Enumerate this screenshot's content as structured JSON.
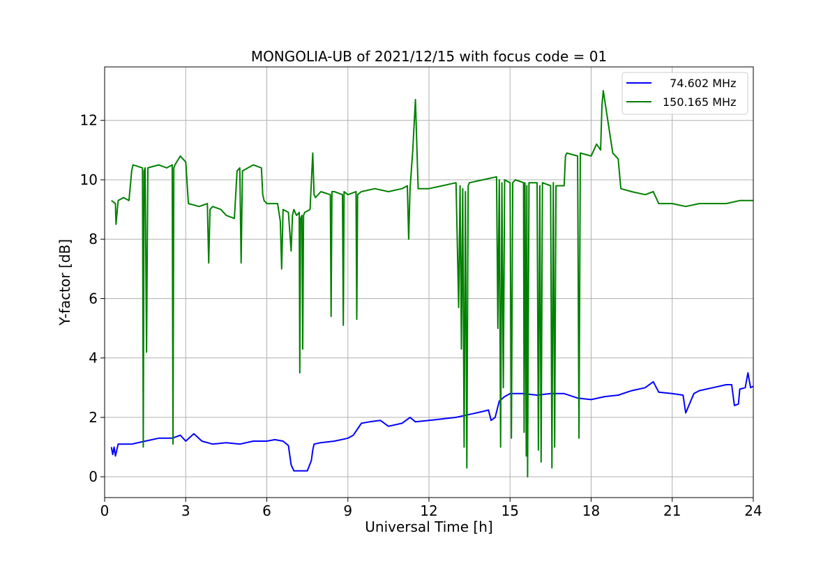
{
  "chart_data": {
    "type": "line",
    "title": "MONGOLIA-UB of 2021/12/15 with focus code = 01",
    "xlabel": "Universal Time [h]",
    "ylabel": "Y-factor [dB]",
    "xlim": [
      0,
      24
    ],
    "ylim": [
      -0.7,
      13.8
    ],
    "xticks": [
      0,
      3,
      6,
      9,
      12,
      15,
      18,
      21,
      24
    ],
    "yticks": [
      0,
      2,
      4,
      6,
      8,
      10,
      12
    ],
    "grid": true,
    "legend_position": "top-right",
    "series": [
      {
        "name": "  74.602 MHz",
        "color": "#0000ff",
        "x": [
          0.25,
          0.3,
          0.35,
          0.4,
          0.5,
          0.7,
          1.0,
          1.5,
          2.0,
          2.5,
          2.8,
          3.0,
          3.3,
          3.6,
          4.0,
          4.5,
          5.0,
          5.5,
          6.0,
          6.3,
          6.6,
          6.8,
          6.9,
          7.0,
          7.3,
          7.5,
          7.65,
          7.7,
          7.75,
          8.0,
          8.5,
          9.0,
          9.2,
          9.5,
          9.8,
          10.2,
          10.5,
          11.0,
          11.3,
          11.5,
          12.0,
          12.5,
          13.0,
          13.5,
          14.0,
          14.2,
          14.3,
          14.45,
          14.6,
          14.8,
          15.0,
          15.5,
          16.0,
          16.5,
          17.0,
          17.5,
          18.0,
          18.5,
          19.0,
          19.5,
          20.0,
          20.3,
          20.5,
          21.0,
          21.4,
          21.5,
          21.8,
          22.0,
          22.5,
          23.0,
          23.2,
          23.3,
          23.45,
          23.5,
          23.7,
          23.8,
          23.9,
          24.0
        ],
        "values": [
          1.0,
          0.75,
          1.0,
          0.7,
          1.1,
          1.1,
          1.1,
          1.2,
          1.3,
          1.3,
          1.4,
          1.2,
          1.45,
          1.2,
          1.1,
          1.15,
          1.1,
          1.2,
          1.2,
          1.25,
          1.2,
          1.05,
          0.4,
          0.2,
          0.2,
          0.2,
          0.55,
          0.9,
          1.1,
          1.15,
          1.2,
          1.3,
          1.4,
          1.8,
          1.85,
          1.9,
          1.7,
          1.8,
          2.0,
          1.85,
          1.9,
          1.95,
          2.0,
          2.1,
          2.2,
          2.25,
          1.9,
          2.0,
          2.55,
          2.7,
          2.8,
          2.8,
          2.75,
          2.8,
          2.8,
          2.65,
          2.6,
          2.7,
          2.75,
          2.9,
          3.0,
          3.2,
          2.85,
          2.8,
          2.75,
          2.15,
          2.8,
          2.9,
          3.0,
          3.1,
          3.1,
          2.4,
          2.45,
          2.95,
          3.0,
          3.5,
          3.0,
          3.05
        ]
      },
      {
        "name": "150.165 MHz",
        "color": "#008000",
        "x": [
          0.25,
          0.4,
          0.42,
          0.5,
          0.7,
          0.9,
          1.0,
          1.05,
          1.4,
          1.43,
          1.46,
          1.5,
          1.55,
          1.6,
          2.0,
          2.3,
          2.5,
          2.53,
          2.56,
          2.6,
          2.8,
          3.0,
          3.1,
          3.5,
          3.8,
          3.85,
          3.9,
          4.0,
          4.3,
          4.5,
          4.8,
          4.9,
          5.0,
          5.05,
          5.1,
          5.5,
          5.8,
          5.85,
          5.9,
          6.0,
          6.4,
          6.5,
          6.55,
          6.6,
          6.8,
          6.9,
          6.95,
          7.0,
          7.1,
          7.2,
          7.22,
          7.25,
          7.3,
          7.33,
          7.36,
          7.4,
          7.6,
          7.7,
          7.75,
          7.8,
          8.0,
          8.35,
          8.38,
          8.41,
          8.5,
          8.8,
          8.83,
          8.86,
          9.0,
          9.3,
          9.33,
          9.36,
          9.5,
          10.0,
          10.5,
          11.0,
          11.2,
          11.25,
          11.3,
          11.4,
          11.5,
          11.6,
          12.0,
          12.5,
          13.0,
          13.1,
          13.15,
          13.2,
          13.25,
          13.3,
          13.35,
          13.4,
          13.45,
          13.5,
          14.0,
          14.5,
          14.55,
          14.6,
          14.65,
          14.7,
          14.75,
          14.8,
          15.0,
          15.05,
          15.1,
          15.2,
          15.5,
          15.52,
          15.55,
          15.6,
          15.62,
          15.65,
          15.7,
          16.0,
          16.05,
          16.1,
          16.15,
          16.2,
          16.5,
          16.55,
          16.6,
          16.65,
          16.7,
          17.0,
          17.05,
          17.1,
          17.5,
          17.55,
          17.6,
          18.0,
          18.2,
          18.35,
          18.4,
          18.45,
          18.8,
          19.0,
          19.1,
          19.5,
          20.0,
          20.3,
          20.5,
          21.0,
          21.5,
          22.0,
          22.5,
          23.0,
          23.5,
          24.0
        ],
        "values": [
          9.3,
          9.2,
          8.5,
          9.3,
          9.4,
          9.3,
          10.3,
          10.5,
          10.4,
          1.0,
          10.3,
          10.4,
          4.2,
          10.4,
          10.5,
          10.4,
          10.5,
          1.1,
          10.4,
          10.5,
          10.8,
          10.6,
          9.2,
          9.1,
          9.2,
          7.2,
          9.0,
          9.1,
          9.0,
          8.8,
          8.7,
          10.3,
          10.4,
          7.2,
          10.3,
          10.5,
          10.4,
          9.5,
          9.3,
          9.2,
          9.2,
          8.6,
          7.0,
          9.0,
          8.9,
          7.6,
          8.8,
          9.0,
          8.8,
          8.9,
          3.5,
          8.7,
          8.8,
          4.3,
          8.8,
          8.9,
          9.0,
          10.9,
          9.5,
          9.4,
          9.6,
          9.5,
          5.4,
          9.6,
          9.6,
          9.5,
          5.1,
          9.6,
          9.5,
          9.6,
          5.3,
          9.5,
          9.6,
          9.7,
          9.6,
          9.7,
          9.8,
          8.0,
          9.7,
          11.0,
          12.7,
          9.7,
          9.7,
          9.8,
          9.9,
          5.7,
          9.8,
          4.3,
          9.7,
          1.0,
          9.6,
          0.3,
          9.8,
          9.9,
          10.0,
          10.1,
          5.0,
          10.0,
          1.0,
          9.9,
          3.0,
          10.0,
          9.9,
          1.3,
          9.9,
          10.0,
          9.9,
          1.5,
          9.9,
          0.7,
          9.8,
          0.0,
          9.9,
          9.9,
          0.9,
          9.8,
          0.5,
          9.9,
          9.8,
          0.3,
          9.9,
          1.0,
          9.8,
          9.8,
          10.8,
          10.9,
          10.8,
          1.3,
          10.9,
          10.8,
          11.2,
          11.0,
          12.5,
          13.0,
          10.9,
          10.7,
          9.7,
          9.6,
          9.5,
          9.6,
          9.2,
          9.2,
          9.1,
          9.2,
          9.2,
          9.2,
          9.3,
          9.3
        ]
      }
    ]
  }
}
